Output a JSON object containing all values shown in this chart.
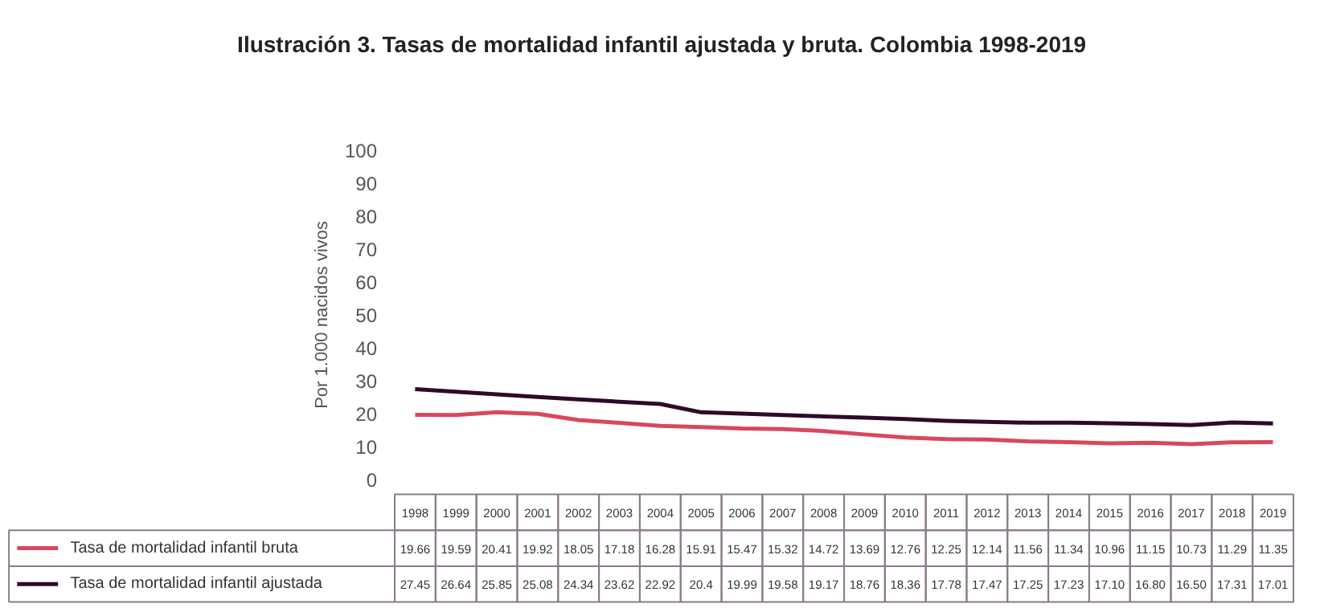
{
  "chart_data": {
    "type": "line",
    "title": "Ilustración 3.  Tasas de mortalidad infantil ajustada y bruta. Colombia 1998-2019",
    "ylabel": "Por 1.000 nacidos vivos",
    "categories": [
      "1998",
      "1999",
      "2000",
      "2001",
      "2002",
      "2003",
      "2004",
      "2005",
      "2006",
      "2007",
      "2008",
      "2009",
      "2010",
      "2011",
      "2012",
      "2013",
      "2014",
      "2015",
      "2016",
      "2017",
      "2018",
      "2019"
    ],
    "series": [
      {
        "name": "Tasa de mortalidad infantil bruta",
        "color": "#d9475f",
        "values": [
          19.66,
          19.59,
          20.41,
          19.92,
          18.05,
          17.18,
          16.28,
          15.91,
          15.47,
          15.32,
          14.72,
          13.69,
          12.76,
          12.25,
          12.14,
          11.56,
          11.34,
          10.96,
          11.15,
          10.73,
          11.29,
          11.35
        ],
        "value_labels": [
          "19.66",
          "19.59",
          "20.41",
          "19.92",
          "18.05",
          "17.18",
          "16.28",
          "15.91",
          "15.47",
          "15.32",
          "14.72",
          "13.69",
          "12.76",
          "12.25",
          "12.14",
          "11.56",
          "11.34",
          "10.96",
          "11.15",
          "10.73",
          "11.29",
          "11.35"
        ]
      },
      {
        "name": "Tasa de mortalidad infantil ajustada",
        "color": "#2d0a2a",
        "values": [
          27.45,
          26.64,
          25.85,
          25.08,
          24.34,
          23.62,
          22.92,
          20.4,
          19.99,
          19.58,
          19.17,
          18.76,
          18.36,
          17.78,
          17.47,
          17.25,
          17.23,
          17.1,
          16.8,
          16.5,
          17.31,
          17.01
        ],
        "value_labels": [
          "27.45",
          "26.64",
          "25.85",
          "25.08",
          "24.34",
          "23.62",
          "22.92",
          "20.4",
          "19.99",
          "19.58",
          "19.17",
          "18.76",
          "18.36",
          "17.78",
          "17.47",
          "17.25",
          "17.23",
          "17.10",
          "16.80",
          "16.50",
          "17.31",
          "17.01"
        ]
      }
    ],
    "ylim": [
      0,
      100
    ],
    "yticks": [
      0,
      10,
      20,
      30,
      40,
      50,
      60,
      70,
      80,
      90,
      100
    ],
    "grid": false,
    "legend": "bottom left",
    "marker": "none",
    "line_style": "solid"
  }
}
